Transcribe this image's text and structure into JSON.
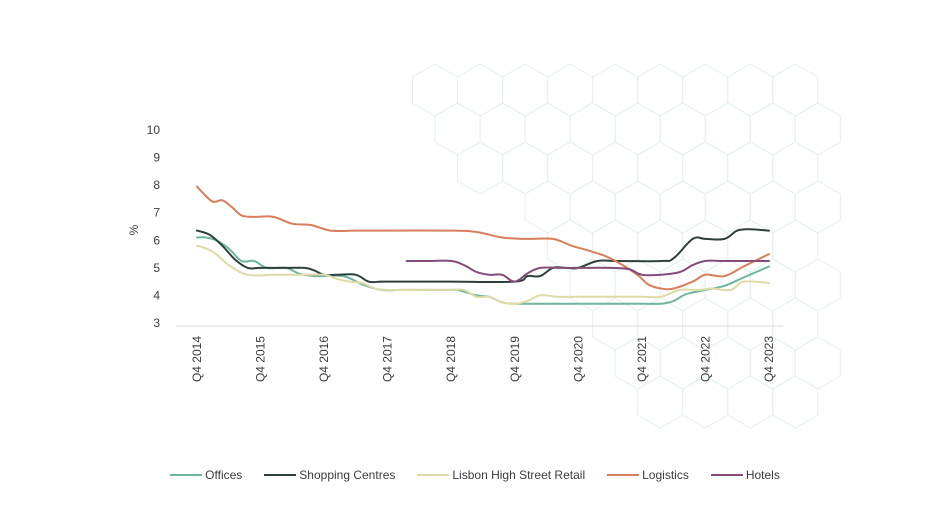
{
  "chart_data": {
    "type": "line",
    "ylabel": "%",
    "ylim": [
      3,
      10
    ],
    "yticks": [
      "3",
      "4",
      "5",
      "6",
      "7",
      "8",
      "9",
      "10"
    ],
    "xlim": [
      0,
      9
    ],
    "xticks": [
      "Q4 2014",
      "Q4 2015",
      "Q4 2016",
      "Q4 2017",
      "Q4 2018",
      "Q4 2019",
      "Q4 2020",
      "Q4 2021",
      "Q4 2022",
      "Q4 2023"
    ],
    "grid": false,
    "legend_position": "bottom",
    "series": [
      {
        "name": "Offices",
        "color": "#6fb5a0",
        "points": [
          [
            0,
            6.1
          ],
          [
            0.15,
            6.1
          ],
          [
            0.3,
            6
          ],
          [
            0.5,
            5.7
          ],
          [
            0.7,
            5.25
          ],
          [
            0.9,
            5.25
          ],
          [
            1.1,
            5
          ],
          [
            1.4,
            5
          ],
          [
            1.6,
            4.8
          ],
          [
            1.85,
            4.7
          ],
          [
            2.3,
            4.7
          ],
          [
            2.6,
            4.4
          ],
          [
            2.9,
            4.2
          ],
          [
            3.2,
            4.2
          ],
          [
            3.4,
            4.2
          ],
          [
            4,
            4.2
          ],
          [
            4.1,
            4.2
          ],
          [
            4.4,
            4
          ],
          [
            4.6,
            3.95
          ],
          [
            4.8,
            3.75
          ],
          [
            5,
            3.7
          ],
          [
            5.5,
            3.7
          ],
          [
            6,
            3.7
          ],
          [
            7,
            3.7
          ],
          [
            7.3,
            3.7
          ],
          [
            7.5,
            3.8
          ],
          [
            7.7,
            4.05
          ],
          [
            8,
            4.2
          ],
          [
            8.3,
            4.35
          ],
          [
            8.6,
            4.65
          ],
          [
            8.8,
            4.85
          ],
          [
            9,
            5.05
          ]
        ]
      },
      {
        "name": "Shopping Centres",
        "color": "#2e3f3c",
        "points": [
          [
            0,
            6.35
          ],
          [
            0.2,
            6.2
          ],
          [
            0.4,
            5.8
          ],
          [
            0.6,
            5.3
          ],
          [
            0.8,
            5
          ],
          [
            1,
            5
          ],
          [
            1.4,
            5
          ],
          [
            1.7,
            5
          ],
          [
            1.85,
            4.9
          ],
          [
            2,
            4.75
          ],
          [
            2.2,
            4.75
          ],
          [
            2.5,
            4.75
          ],
          [
            2.7,
            4.5
          ],
          [
            2.9,
            4.5
          ],
          [
            3.2,
            4.5
          ],
          [
            4,
            4.5
          ],
          [
            5,
            4.5
          ],
          [
            5.2,
            4.7
          ],
          [
            5.4,
            4.7
          ],
          [
            5.6,
            5
          ],
          [
            5.8,
            5
          ],
          [
            6,
            5
          ],
          [
            6.3,
            5.25
          ],
          [
            6.6,
            5.25
          ],
          [
            7.3,
            5.25
          ],
          [
            7.5,
            5.35
          ],
          [
            7.8,
            6.05
          ],
          [
            8,
            6.05
          ],
          [
            8.3,
            6.05
          ],
          [
            8.5,
            6.35
          ],
          [
            8.7,
            6.4
          ],
          [
            9,
            6.35
          ]
        ]
      },
      {
        "name": "Lisbon High Street Retail",
        "color": "#dedba6",
        "points": [
          [
            0,
            5.8
          ],
          [
            0.15,
            5.7
          ],
          [
            0.3,
            5.5
          ],
          [
            0.5,
            5.1
          ],
          [
            0.8,
            4.75
          ],
          [
            1.2,
            4.75
          ],
          [
            1.6,
            4.75
          ],
          [
            2,
            4.75
          ],
          [
            2.2,
            4.6
          ],
          [
            2.4,
            4.5
          ],
          [
            2.6,
            4.45
          ],
          [
            2.8,
            4.25
          ],
          [
            3,
            4.2
          ],
          [
            3.5,
            4.2
          ],
          [
            4,
            4.2
          ],
          [
            4.2,
            4.2
          ],
          [
            4.4,
            3.95
          ],
          [
            4.6,
            3.95
          ],
          [
            4.8,
            3.75
          ],
          [
            5,
            3.7
          ],
          [
            5.2,
            3.8
          ],
          [
            5.4,
            4
          ],
          [
            5.7,
            3.95
          ],
          [
            6,
            3.95
          ],
          [
            6.5,
            3.95
          ],
          [
            7,
            3.95
          ],
          [
            7.3,
            3.95
          ],
          [
            7.6,
            4.2
          ],
          [
            7.9,
            4.2
          ],
          [
            8.1,
            4.25
          ],
          [
            8.4,
            4.2
          ],
          [
            8.6,
            4.5
          ],
          [
            9,
            4.45
          ]
        ]
      },
      {
        "name": "Logistics",
        "color": "#d97d5b",
        "points": [
          [
            0,
            7.95
          ],
          [
            0.1,
            7.7
          ],
          [
            0.25,
            7.4
          ],
          [
            0.4,
            7.45
          ],
          [
            0.55,
            7.2
          ],
          [
            0.7,
            6.9
          ],
          [
            0.9,
            6.85
          ],
          [
            1.2,
            6.85
          ],
          [
            1.5,
            6.6
          ],
          [
            1.8,
            6.55
          ],
          [
            2.1,
            6.35
          ],
          [
            2.5,
            6.35
          ],
          [
            3,
            6.35
          ],
          [
            4,
            6.35
          ],
          [
            4.4,
            6.3
          ],
          [
            4.8,
            6.1
          ],
          [
            5.2,
            6.05
          ],
          [
            5.6,
            6.05
          ],
          [
            5.9,
            5.8
          ],
          [
            6.2,
            5.6
          ],
          [
            6.5,
            5.35
          ],
          [
            6.9,
            4.8
          ],
          [
            7.1,
            4.4
          ],
          [
            7.3,
            4.25
          ],
          [
            7.5,
            4.25
          ],
          [
            7.8,
            4.5
          ],
          [
            8,
            4.75
          ],
          [
            8.3,
            4.7
          ],
          [
            8.6,
            5.05
          ],
          [
            9,
            5.5
          ]
        ]
      },
      {
        "name": "Hotels",
        "color": "#834c79",
        "points": [
          [
            3.3,
            5.25
          ],
          [
            3.6,
            5.25
          ],
          [
            4,
            5.25
          ],
          [
            4.2,
            5.1
          ],
          [
            4.4,
            4.85
          ],
          [
            4.6,
            4.75
          ],
          [
            4.8,
            4.75
          ],
          [
            5,
            4.5
          ],
          [
            5.2,
            4.8
          ],
          [
            5.4,
            5
          ],
          [
            5.7,
            5
          ],
          [
            6,
            5
          ],
          [
            6.5,
            5
          ],
          [
            6.8,
            4.95
          ],
          [
            7,
            4.75
          ],
          [
            7.3,
            4.75
          ],
          [
            7.6,
            4.85
          ],
          [
            7.8,
            5.1
          ],
          [
            8,
            5.25
          ],
          [
            8.3,
            5.25
          ],
          [
            8.6,
            5.25
          ],
          [
            9,
            5.25
          ]
        ]
      }
    ]
  }
}
